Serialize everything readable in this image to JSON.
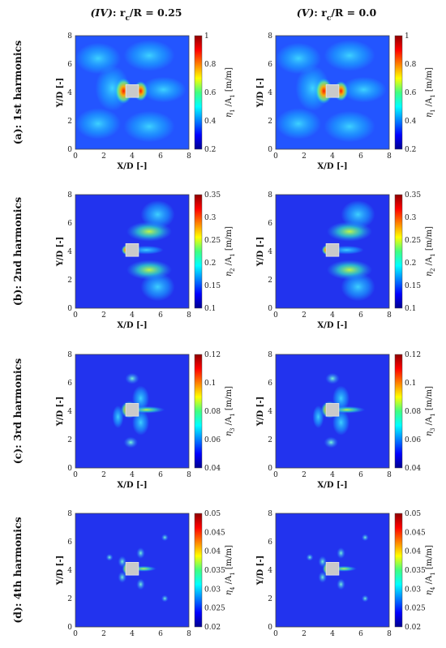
{
  "columns": [
    {
      "id": "IV",
      "roman": "(IV)",
      "rest": ": r",
      "sub": "c",
      "tail": "/R = 0.25"
    },
    {
      "id": "V",
      "roman": "(V)",
      "rest": ": r",
      "sub": "c",
      "tail": "/R = 0.0"
    }
  ],
  "rows": [
    {
      "label": "(a): 1st harmonics",
      "eta_sub": "1",
      "show_xlabel": true,
      "colorbar": {
        "min": 0.2,
        "max": 1,
        "ticks": [
          "1",
          "0.8",
          "0.6",
          "0.4",
          "0.2"
        ]
      }
    },
    {
      "label": "(b): 2nd harmonics",
      "eta_sub": "2",
      "show_xlabel": true,
      "colorbar": {
        "min": 0.1,
        "max": 0.35,
        "ticks": [
          "0.35",
          "0.3",
          "0.25",
          "0.2",
          "0.15",
          "0.1"
        ]
      }
    },
    {
      "label": "(c): 3rd harmonics",
      "eta_sub": "3",
      "show_xlabel": true,
      "colorbar": {
        "min": 0.04,
        "max": 0.12,
        "ticks": [
          "0.12",
          "0.1",
          "0.08",
          "0.06",
          "0.04"
        ]
      }
    },
    {
      "label": "(d): 4th harmonics",
      "eta_sub": "4",
      "show_xlabel": false,
      "colorbar": {
        "min": 0.02,
        "max": 0.05,
        "ticks": [
          "0.05",
          "0.045",
          "0.04",
          "0.035",
          "0.03",
          "0.025",
          "0.02"
        ]
      }
    }
  ],
  "axes": {
    "xlabel": "X/D [-]",
    "ylabel": "Y/D [-]",
    "xticks": [
      "0",
      "2",
      "4",
      "6",
      "8"
    ],
    "yticks": [
      "8",
      "6",
      "4",
      "2",
      "0"
    ],
    "xlim": [
      0,
      8
    ],
    "ylim": [
      0,
      8
    ]
  },
  "colorbar_label": {
    "eta": "η",
    "over": " /A",
    "a_sub": "1",
    "units": " [m/m]"
  },
  "chart_data": [
    {
      "type": "heatmap",
      "panel": "(a) IV",
      "xlim": [
        0,
        8
      ],
      "ylim": [
        0,
        8
      ],
      "colorbar_range": [
        0.2,
        1
      ],
      "peak_value": 1.0,
      "peak_location": [
        3.6,
        4.0
      ]
    },
    {
      "type": "heatmap",
      "panel": "(a) V",
      "xlim": [
        0,
        8
      ],
      "ylim": [
        0,
        8
      ],
      "colorbar_range": [
        0.2,
        1
      ],
      "peak_value": 1.0,
      "peak_location": [
        3.6,
        4.0
      ]
    },
    {
      "type": "heatmap",
      "panel": "(b) IV",
      "xlim": [
        0,
        8
      ],
      "ylim": [
        0,
        8
      ],
      "colorbar_range": [
        0.1,
        0.35
      ],
      "peak_value": 0.35,
      "peak_location": [
        3.6,
        4.0
      ]
    },
    {
      "type": "heatmap",
      "panel": "(b) V",
      "xlim": [
        0,
        8
      ],
      "ylim": [
        0,
        8
      ],
      "colorbar_range": [
        0.1,
        0.35
      ],
      "peak_value": 0.35,
      "peak_location": [
        3.6,
        4.0
      ]
    },
    {
      "type": "heatmap",
      "panel": "(c) IV",
      "xlim": [
        0,
        8
      ],
      "ylim": [
        0,
        8
      ],
      "colorbar_range": [
        0.04,
        0.12
      ],
      "peak_value": 0.12,
      "peak_location": [
        3.6,
        4.0
      ]
    },
    {
      "type": "heatmap",
      "panel": "(c) V",
      "xlim": [
        0,
        8
      ],
      "ylim": [
        0,
        8
      ],
      "colorbar_range": [
        0.04,
        0.12
      ],
      "peak_value": 0.12,
      "peak_location": [
        3.6,
        4.0
      ]
    },
    {
      "type": "heatmap",
      "panel": "(d) IV",
      "xlim": [
        0,
        8
      ],
      "ylim": [
        0,
        8
      ],
      "colorbar_range": [
        0.02,
        0.05
      ],
      "peak_value": 0.05,
      "peak_location": [
        3.6,
        4.0
      ]
    },
    {
      "type": "heatmap",
      "panel": "(d) V",
      "xlim": [
        0,
        8
      ],
      "ylim": [
        0,
        8
      ],
      "colorbar_range": [
        0.02,
        0.05
      ],
      "peak_value": 0.05,
      "peak_location": [
        3.6,
        4.0
      ]
    }
  ]
}
